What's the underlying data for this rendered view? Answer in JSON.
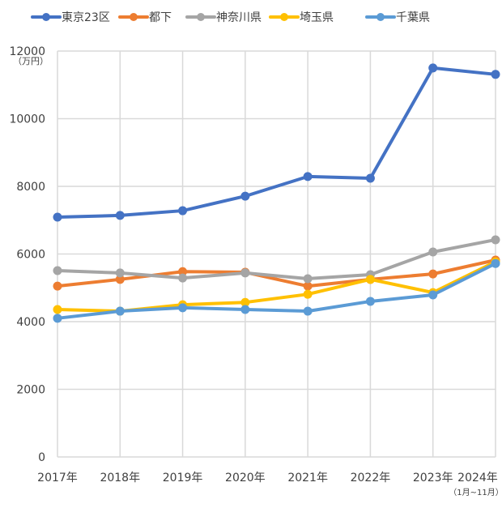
{
  "chart_data": {
    "type": "line",
    "title": "",
    "xlabel": "",
    "ylabel": "",
    "y_unit": "（万円）",
    "ylim": [
      0,
      12000
    ],
    "yticks": [
      0,
      2000,
      4000,
      6000,
      8000,
      10000,
      12000
    ],
    "grid": true,
    "legend_position": "top",
    "categories": [
      "2017年",
      "2018年",
      "2019年",
      "2020年",
      "2021年",
      "2022年",
      "2023年",
      "2024年"
    ],
    "category_notes": [
      "",
      "",
      "",
      "",
      "",
      "",
      "",
      "（1月~11月）"
    ],
    "series": [
      {
        "name": "東京23区",
        "color": "#4472C4",
        "values": [
          7090,
          7140,
          7280,
          7710,
          8290,
          8240,
          11500,
          11310
        ]
      },
      {
        "name": "都下",
        "color": "#ED7D31",
        "values": [
          5050,
          5250,
          5480,
          5460,
          5050,
          5250,
          5410,
          5820
        ]
      },
      {
        "name": "神奈川県",
        "color": "#A5A5A5",
        "values": [
          5510,
          5440,
          5290,
          5440,
          5270,
          5390,
          6060,
          6420
        ]
      },
      {
        "name": "埼玉県",
        "color": "#FFC000",
        "values": [
          4360,
          4310,
          4500,
          4570,
          4810,
          5250,
          4860,
          5770
        ]
      },
      {
        "name": "千葉県",
        "color": "#5B9BD5",
        "values": [
          4100,
          4310,
          4410,
          4360,
          4310,
          4600,
          4790,
          5720
        ]
      }
    ]
  }
}
